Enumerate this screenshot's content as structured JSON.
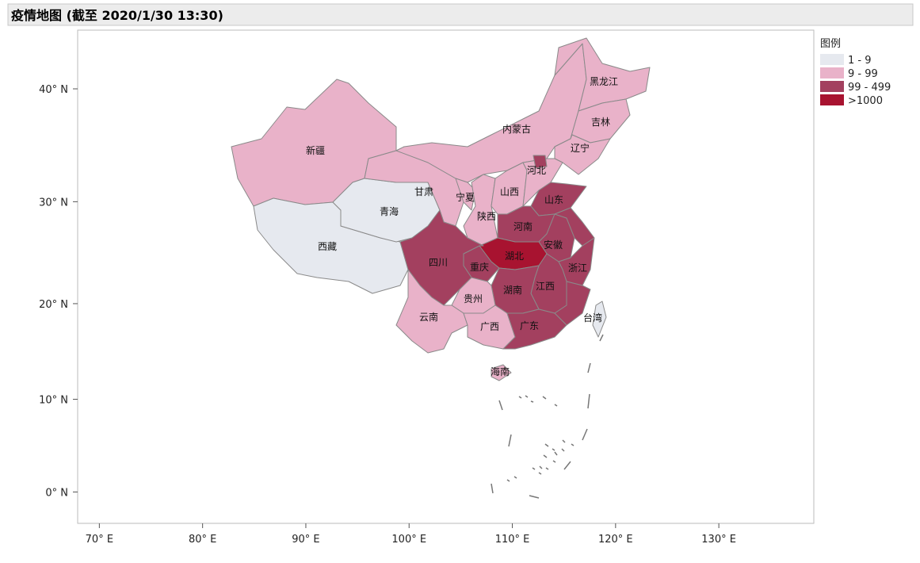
{
  "title": "疫情地图 (截至 2020/1/30 13:30)",
  "map": {
    "xlim": [
      67.9,
      139.2
    ],
    "ylim": [
      -3.4,
      44.7
    ],
    "xticks": [
      {
        "value": 70,
        "label": "70° E"
      },
      {
        "value": 80,
        "label": "80° E"
      },
      {
        "value": 90,
        "label": "90° E"
      },
      {
        "value": 100,
        "label": "100° E"
      },
      {
        "value": 110,
        "label": "110° E"
      },
      {
        "value": 120,
        "label": "120° E"
      },
      {
        "value": 130,
        "label": "130° E"
      }
    ],
    "yticks": [
      {
        "value": 0,
        "label": "0° N"
      },
      {
        "value": 10,
        "label": "10° N"
      },
      {
        "value": 20,
        "label": "20° N"
      },
      {
        "value": 30,
        "label": "30° N"
      },
      {
        "value": 40,
        "label": "40° N"
      }
    ],
    "legend": {
      "title": "图例",
      "items": [
        {
          "label": "1 - 9",
          "color": "#e6e9ef"
        },
        {
          "label": "9 - 99",
          "color": "#e9b2c9"
        },
        {
          "label": "99 - 499",
          "color": "#a3405f"
        },
        {
          "label": ">1000",
          "color": "#a81330"
        }
      ]
    },
    "regions": [
      {
        "name": "新疆",
        "level": 1
      },
      {
        "name": "西藏",
        "level": 0
      },
      {
        "name": "青海",
        "level": 0
      },
      {
        "name": "甘肃",
        "level": 1
      },
      {
        "name": "内蒙古",
        "level": 1
      },
      {
        "name": "黑龙江",
        "level": 1
      },
      {
        "name": "吉林",
        "level": 1
      },
      {
        "name": "辽宁",
        "level": 1
      },
      {
        "name": "宁夏",
        "level": 1
      },
      {
        "name": "陕西",
        "level": 1
      },
      {
        "name": "山西",
        "level": 1
      },
      {
        "name": "河北",
        "level": 1
      },
      {
        "name": null,
        "level": 2
      },
      {
        "name": "山东",
        "level": 2
      },
      {
        "name": "河南",
        "level": 2
      },
      {
        "name": "安徽",
        "level": 2
      },
      {
        "name": null,
        "level": 2
      },
      {
        "name": "湖北",
        "level": 3
      },
      {
        "name": "重庆",
        "level": 2
      },
      {
        "name": "四川",
        "level": 2
      },
      {
        "name": "浙江",
        "level": 2
      },
      {
        "name": "江西",
        "level": 2
      },
      {
        "name": "湖南",
        "level": 2
      },
      {
        "name": null,
        "level": 2
      },
      {
        "name": "贵州",
        "level": 1
      },
      {
        "name": "云南",
        "level": 1
      },
      {
        "name": "广西",
        "level": 1
      },
      {
        "name": "广东",
        "level": 2
      },
      {
        "name": "海南",
        "level": 1
      },
      {
        "name": "台湾",
        "level": 0
      }
    ]
  }
}
